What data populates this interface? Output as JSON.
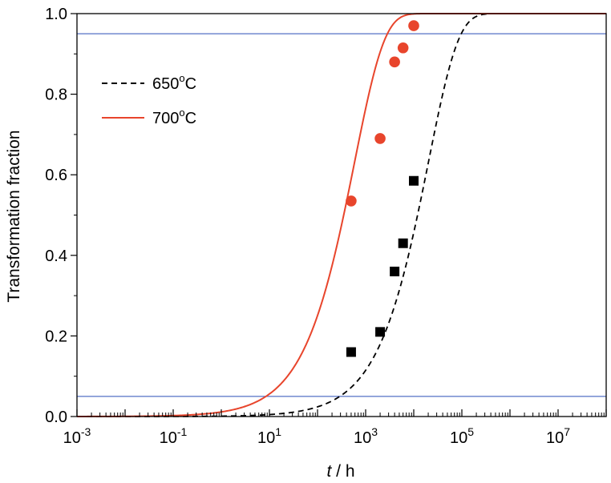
{
  "chart_data": {
    "type": "scatter",
    "title": "",
    "xlabel": {
      "italic": "t",
      "rest": " / h"
    },
    "ylabel": "Transformation fraction",
    "xscale": "log",
    "xlim": [
      0.001,
      100000000
    ],
    "ylim": [
      0,
      1.0
    ],
    "x_ticks": [
      {
        "base": "10",
        "exp": "-3"
      },
      {
        "base": "10",
        "exp": "-1"
      },
      {
        "base": "10",
        "exp": "1"
      },
      {
        "base": "10",
        "exp": "3"
      },
      {
        "base": "10",
        "exp": "5"
      },
      {
        "base": "10",
        "exp": "7"
      }
    ],
    "y_ticks": [
      "0.0",
      "0.2",
      "0.4",
      "0.6",
      "0.8",
      "1.0"
    ],
    "grid": false,
    "legend_position": "top-left",
    "reference_lines": [
      {
        "y": 0.05,
        "color": "#5470c6"
      },
      {
        "y": 0.95,
        "color": "#5470c6"
      }
    ],
    "series": [
      {
        "name": "650",
        "name_sup": "o",
        "name_suffix": "C",
        "color": "#000000",
        "line_style": "dashed",
        "marker": "square",
        "fit": {
          "n": 0.7,
          "t_half": 12000
        },
        "points": [
          {
            "x": 500,
            "y": 0.16
          },
          {
            "x": 2000,
            "y": 0.21
          },
          {
            "x": 4000,
            "y": 0.36
          },
          {
            "x": 6000,
            "y": 0.43
          },
          {
            "x": 10000,
            "y": 0.585
          }
        ]
      },
      {
        "name": "700",
        "name_sup": "o",
        "name_suffix": "C",
        "color": "#e8452c",
        "line_style": "solid",
        "marker": "circle",
        "fit": {
          "n": 0.7,
          "t_half": 350
        },
        "points": [
          {
            "x": 500,
            "y": 0.535
          },
          {
            "x": 2000,
            "y": 0.69
          },
          {
            "x": 4000,
            "y": 0.88
          },
          {
            "x": 6000,
            "y": 0.915
          },
          {
            "x": 10000,
            "y": 0.97
          }
        ]
      }
    ]
  }
}
